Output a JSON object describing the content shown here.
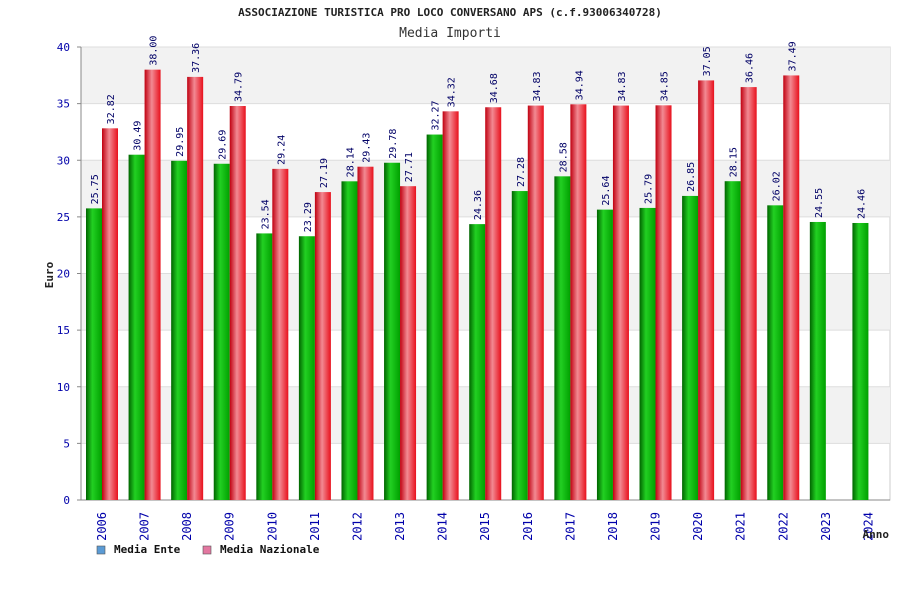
{
  "chart_data": {
    "type": "bar",
    "title": "ASSOCIAZIONE TURISTICA PRO LOCO CONVERSANO APS (c.f.93006340728)",
    "subtitle": "Media Importi",
    "xlabel": "Anno",
    "ylabel": "Euro",
    "ylim": [
      0,
      40
    ],
    "yticks": [
      0,
      5,
      10,
      15,
      20,
      25,
      30,
      35,
      40
    ],
    "grid": true,
    "legend_position": "bottom-left",
    "categories": [
      "2006",
      "2007",
      "2008",
      "2009",
      "2010",
      "2011",
      "2012",
      "2013",
      "2014",
      "2015",
      "2016",
      "2017",
      "2018",
      "2019",
      "2020",
      "2021",
      "2022",
      "2023",
      "2024"
    ],
    "series": [
      {
        "name": "Media Ente",
        "color": "#00a000",
        "legend_color": "#5b9bd5",
        "values": [
          25.75,
          30.49,
          29.95,
          29.69,
          23.54,
          23.29,
          28.14,
          29.78,
          32.27,
          24.36,
          27.28,
          28.58,
          25.64,
          25.79,
          26.85,
          28.15,
          26.02,
          24.55,
          24.46
        ],
        "labels": [
          "25.75",
          "30.49",
          "29.95",
          "29.69",
          "23.54",
          "23.29",
          "28.14",
          "29.78",
          "32.27",
          "24.36",
          "27.28",
          "28.58",
          "25.64",
          "25.79",
          "26.85",
          "28.15",
          "26.02",
          "24.55",
          "24.46"
        ]
      },
      {
        "name": "Media Nazionale",
        "color": "#e8101c",
        "legend_color": "#e377a0",
        "values": [
          32.82,
          38.0,
          37.36,
          34.79,
          29.24,
          27.19,
          29.43,
          27.71,
          34.32,
          34.68,
          34.83,
          34.94,
          34.83,
          34.85,
          37.05,
          36.46,
          37.49,
          null,
          null
        ],
        "labels": [
          "32.82",
          "38.00",
          "37.36",
          "34.79",
          "29.24",
          "27.19",
          "29.43",
          "27.71",
          "34.32",
          "34.68",
          "34.83",
          "34.94",
          "34.83",
          "34.85",
          "37.05",
          "36.46",
          "37.49",
          "",
          ""
        ]
      }
    ]
  }
}
